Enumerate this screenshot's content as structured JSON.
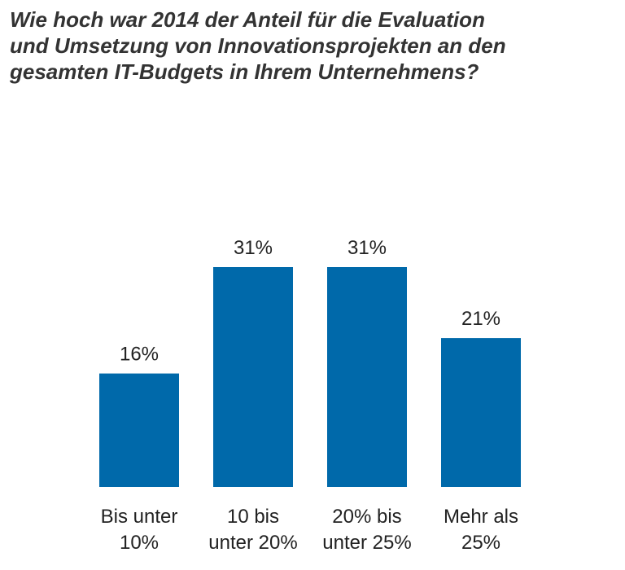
{
  "chart_data": {
    "type": "bar",
    "title_lines": [
      "Wie hoch war 2014 der Anteil für die Evaluation",
      "und Umsetzung von Innovationsprojekten an den",
      "gesamten IT-Budgets in Ihrem Unternehmens?"
    ],
    "categories": [
      [
        "Bis unter",
        "10%"
      ],
      [
        "10 bis",
        "unter 20%"
      ],
      [
        "20% bis",
        "unter 25%"
      ],
      [
        "Mehr als",
        "25%"
      ]
    ],
    "values": [
      16,
      31,
      31,
      21
    ],
    "value_labels": [
      "16%",
      "31%",
      "31%",
      "21%"
    ],
    "ylim": [
      0,
      31
    ],
    "grid": false,
    "legend": "none",
    "bar_color": "#0069AA"
  }
}
